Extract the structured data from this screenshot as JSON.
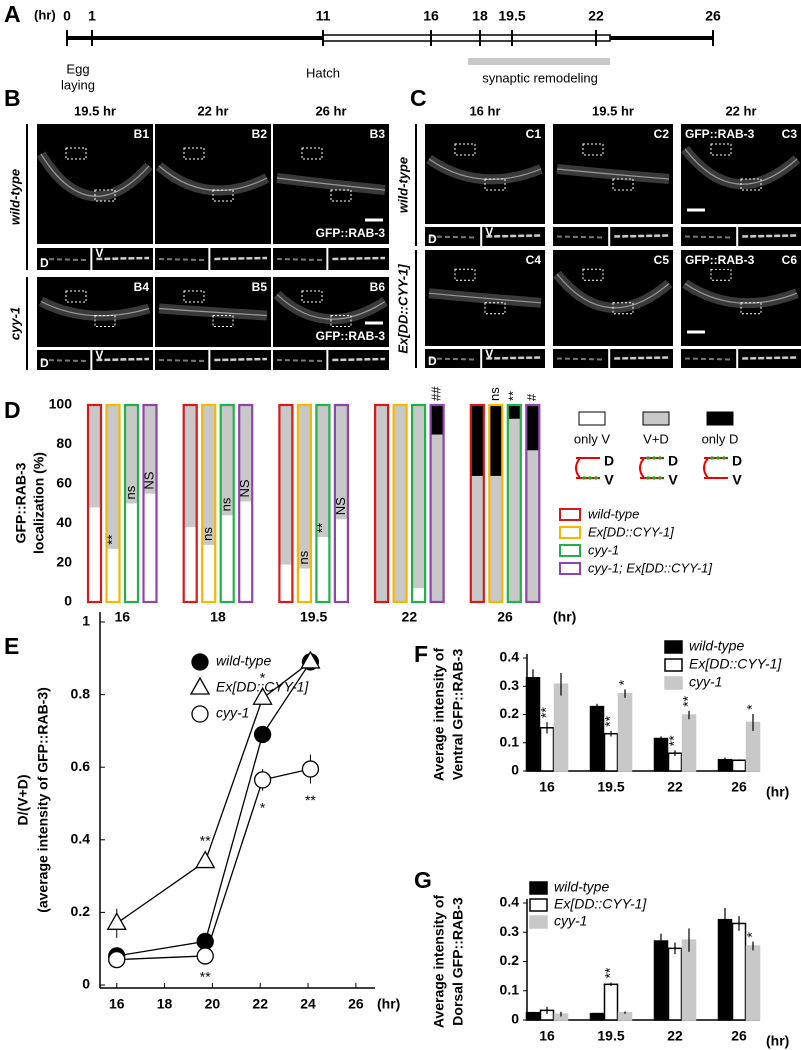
{
  "panel_labels": [
    "A",
    "B",
    "C",
    "D",
    "E",
    "F",
    "G"
  ],
  "timeline": {
    "unit": "(hr)",
    "ticks": [
      0,
      1,
      11,
      16,
      18,
      19.5,
      22,
      26
    ],
    "egg_laying": [
      "Egg",
      "laying"
    ],
    "hatch": "Hatch",
    "remodeling": "synaptic remodeling"
  },
  "micrographs": [
    {
      "columns": [
        "19.5 hr",
        "22 hr",
        "26 hr"
      ],
      "inset_labels": [
        "D",
        "V"
      ],
      "rows": [
        {
          "label": "wild-type",
          "panels": [
            {
              "id": "B1"
            },
            {
              "id": "B2"
            },
            {
              "id": "B3",
              "marker": "GFP::RAB-3"
            }
          ]
        },
        {
          "label": "cyy-1",
          "panels": [
            {
              "id": "B4"
            },
            {
              "id": "B5"
            },
            {
              "id": "B6",
              "marker": "GFP::RAB-3"
            }
          ]
        }
      ]
    },
    {
      "columns": [
        "16 hr",
        "19.5 hr",
        "22 hr"
      ],
      "inset_labels": [
        "D",
        "V"
      ],
      "rows": [
        {
          "label": "wild-type",
          "panels": [
            {
              "id": "C1"
            },
            {
              "id": "C2"
            },
            {
              "id": "C3",
              "marker": "GFP::RAB-3"
            }
          ]
        },
        {
          "label": "Ex[DD::CYY-1]",
          "panels": [
            {
              "id": "C4"
            },
            {
              "id": "C5"
            },
            {
              "id": "C6",
              "marker": "GFP::RAB-3"
            }
          ]
        }
      ]
    }
  ],
  "chart_data": [
    {
      "type": "stacked-bar",
      "ylabel": [
        "GFP::RAB-3",
        "localization (%)"
      ],
      "xlabel": "(hr)",
      "categories": [
        "16",
        "18",
        "19.5",
        "22",
        "26"
      ],
      "groups": [
        {
          "name": "wild-type",
          "color": "#d7191c"
        },
        {
          "name": "Ex[DD::CYY-1]",
          "color": "#f5b800"
        },
        {
          "name": "cyy-1",
          "color": "#22b04a"
        },
        {
          "name": "cyy-1; Ex[DD::CYY-1]",
          "color": "#8e44ad"
        }
      ],
      "series": [
        {
          "name": "only V",
          "color": "#ffffff",
          "values": [
            [
              48,
              27,
              50,
              55
            ],
            [
              38,
              29,
              44,
              51
            ],
            [
              19,
              17,
              33,
              42
            ],
            [
              0,
              0,
              7,
              0
            ],
            [
              0,
              0,
              0,
              0
            ]
          ]
        },
        {
          "name": "V+D",
          "color": "#c8c8c8",
          "values": [
            [
              52,
              73,
              50,
              45
            ],
            [
              62,
              71,
              56,
              49
            ],
            [
              81,
              83,
              67,
              58
            ],
            [
              100,
              100,
              93,
              85
            ],
            [
              64,
              64,
              93,
              77
            ]
          ]
        },
        {
          "name": "only D",
          "color": "#000000",
          "values": [
            [
              0,
              0,
              0,
              0
            ],
            [
              0,
              0,
              0,
              0
            ],
            [
              0,
              0,
              0,
              0
            ],
            [
              0,
              0,
              0,
              15
            ],
            [
              36,
              36,
              7,
              23
            ]
          ]
        }
      ],
      "annotations": [
        [
          null,
          "**",
          "ns",
          "NS"
        ],
        [
          null,
          "ns",
          "ns",
          "NS"
        ],
        [
          null,
          "ns",
          "**",
          "NS"
        ],
        [
          null,
          null,
          null,
          "##"
        ],
        [
          null,
          "ns",
          "**",
          "#"
        ]
      ],
      "icon_labels": [
        "D",
        "V"
      ],
      "ylim": [
        0,
        100
      ],
      "yticks": [
        0,
        20,
        40,
        60,
        80,
        100
      ]
    },
    {
      "type": "line",
      "ylabel": [
        "D/(V+D)",
        "(average intensity of GFP::RAB-3)"
      ],
      "xlabel": "(hr)",
      "x": [
        16,
        19.7,
        22.1,
        24.1
      ],
      "xlim": [
        15.3,
        26.8
      ],
      "xticks": [
        16,
        18,
        20,
        22,
        24,
        26
      ],
      "ylim": [
        0,
        1
      ],
      "yticks": [
        0,
        0.2,
        0.4,
        0.6,
        0.8,
        1
      ],
      "series": [
        {
          "name": "wild-type",
          "marker": "filled-circle",
          "values": [
            0.08,
            0.12,
            0.69,
            0.89
          ],
          "errors": [
            0.01,
            0.01,
            0.02,
            0.01
          ],
          "annotations": [
            null,
            null,
            null,
            null
          ],
          "annotation_side": "above"
        },
        {
          "name": "Ex[DD::CYY-1]",
          "marker": "triangle",
          "values": [
            0.17,
            0.34,
            0.79,
            0.89
          ],
          "errors": [
            0.04,
            0.01,
            0.01,
            0.01
          ],
          "annotations": [
            null,
            "**",
            "*",
            null
          ],
          "annotation_side": "above"
        },
        {
          "name": "cyy-1",
          "marker": "open-circle",
          "values": [
            0.07,
            0.08,
            0.565,
            0.595
          ],
          "errors": [
            0.01,
            0.01,
            0.03,
            0.04
          ],
          "annotations": [
            null,
            "**",
            "*",
            "**"
          ],
          "annotation_side": "below"
        }
      ]
    },
    {
      "type": "bar",
      "ylabel": [
        "Average intensity of",
        "Ventral GFP::RAB-3"
      ],
      "xlabel": "(hr)",
      "categories": [
        "16",
        "19.5",
        "22",
        "26"
      ],
      "ylim": [
        0,
        0.4
      ],
      "yticks": [
        0,
        0.1,
        0.2,
        0.3,
        0.4
      ],
      "series": [
        {
          "name": "wild-type",
          "color": "#000000",
          "values": [
            0.33,
            0.228,
            0.115,
            0.04
          ],
          "errors": [
            0.03,
            0.01,
            0.008,
            0.008
          ],
          "annotations": [
            null,
            null,
            null,
            null
          ]
        },
        {
          "name": "Ex[DD::CYY-1]",
          "color": "#ffffff",
          "values": [
            0.153,
            0.132,
            0.063,
            0.038
          ],
          "errors": [
            0.02,
            0.01,
            0.01,
            0.003
          ],
          "annotations": [
            "**",
            "**",
            "**",
            null
          ]
        },
        {
          "name": "cyy-1",
          "color": "#c8c8c8",
          "values": [
            0.307,
            0.274,
            0.198,
            0.172
          ],
          "errors": [
            0.04,
            0.015,
            0.015,
            0.03
          ],
          "annotations": [
            null,
            "*",
            "**",
            "*"
          ]
        }
      ]
    },
    {
      "type": "bar",
      "ylabel": [
        "Average intensity of",
        "Dorsal GFP::RAB-3"
      ],
      "xlabel": "(hr)",
      "categories": [
        "16",
        "19.5",
        "22",
        "26"
      ],
      "ylim": [
        0,
        0.4
      ],
      "yticks": [
        0,
        0.1,
        0.2,
        0.3,
        0.4
      ],
      "series": [
        {
          "name": "wild-type",
          "color": "#000000",
          "values": [
            0.025,
            0.022,
            0.27,
            0.343
          ],
          "errors": [
            0.003,
            0.002,
            0.025,
            0.04
          ],
          "annotations": [
            null,
            null,
            null,
            null
          ]
        },
        {
          "name": "Ex[DD::CYY-1]",
          "color": "#ffffff",
          "values": [
            0.033,
            0.122,
            0.245,
            0.33
          ],
          "errors": [
            0.012,
            0.006,
            0.02,
            0.025
          ],
          "annotations": [
            null,
            "**",
            null,
            null
          ]
        },
        {
          "name": "cyy-1",
          "color": "#c8c8c8",
          "values": [
            0.02,
            0.025,
            0.273,
            0.253
          ],
          "errors": [
            0.008,
            0.004,
            0.04,
            0.015
          ],
          "annotations": [
            null,
            null,
            null,
            "*"
          ]
        }
      ]
    }
  ]
}
